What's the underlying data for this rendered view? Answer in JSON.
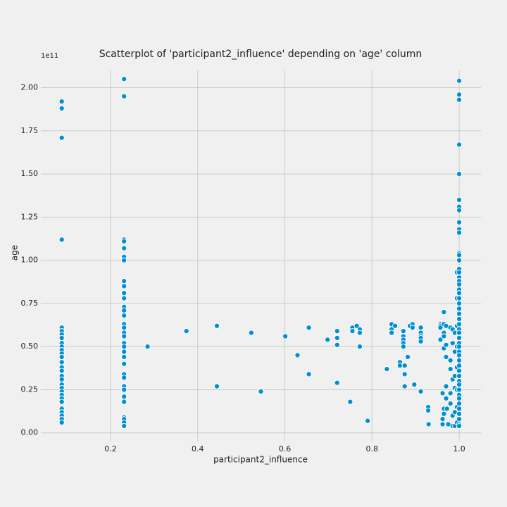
{
  "chart_data": {
    "type": "scatter",
    "title": "Scatterplot of 'participant2_influence' depending on 'age' column",
    "x_label": "participant2_influence",
    "y_label": "age",
    "y_offset_label": "1e11",
    "color": "#008fd5",
    "grid": true,
    "xlim": [
      0.04,
      1.05
    ],
    "ylim": [
      -0.05,
      2.1
    ],
    "xticks": [
      0.2,
      0.4,
      0.6,
      0.8,
      {
        "value": 1,
        "label": "1.0"
      }
    ],
    "yticks": [
      {
        "value": 0,
        "label": "0.00"
      },
      {
        "value": 0.25,
        "label": "0.25"
      },
      {
        "value": 0.5,
        "label": "0.50"
      },
      {
        "value": 0.75,
        "label": "0.75"
      },
      {
        "value": 1,
        "label": "1.00"
      },
      {
        "value": 1.25,
        "label": "1.25"
      },
      {
        "value": 1.5,
        "label": "1.50"
      },
      {
        "value": 1.75,
        "label": "1.75"
      },
      {
        "value": 2,
        "label": "2.00"
      }
    ],
    "x": [
      0.088,
      0.088,
      0.088,
      0.088,
      0.088,
      0.088,
      0.088,
      0.088,
      0.088,
      0.088,
      0.088,
      0.088,
      0.088,
      0.088,
      0.088,
      0.088,
      0.088,
      0.088,
      0.088,
      0.088,
      0.088,
      0.088,
      0.088,
      0.088,
      0.088,
      0.088,
      0.088,
      0.088,
      0.088,
      0.231,
      0.231,
      0.231,
      0.231,
      0.231,
      0.231,
      0.231,
      0.231,
      0.231,
      0.231,
      0.231,
      0.231,
      0.231,
      0.231,
      0.231,
      0.231,
      0.231,
      0.231,
      0.231,
      0.231,
      0.231,
      0.231,
      0.231,
      0.231,
      0.231,
      0.231,
      0.231,
      0.231,
      0.231,
      0.231,
      0.231,
      0.231,
      0.231,
      0.285,
      0.374,
      0.444,
      0.444,
      0.523,
      0.545,
      0.601,
      0.629,
      0.655,
      0.655,
      0.698,
      0.72,
      0.72,
      0.72,
      0.72,
      0.75,
      0.755,
      0.755,
      0.765,
      0.772,
      0.772,
      0.772,
      0.79,
      0.834,
      0.845,
      0.845,
      0.845,
      0.853,
      0.864,
      0.864,
      0.872,
      0.872,
      0.872,
      0.872,
      0.872,
      0.875,
      0.875,
      0.875,
      0.882,
      0.887,
      0.893,
      0.893,
      0.897,
      0.912,
      0.912,
      0.912,
      0.912,
      0.912,
      0.912,
      0.929,
      0.929,
      0.93,
      0.957,
      0.957,
      0.957,
      0.957,
      0.962,
      0.962,
      0.962,
      0.965,
      0.965,
      0.965,
      0.965,
      0.965,
      0.965,
      0.965,
      0.97,
      0.97,
      0.97,
      0.97,
      0.97,
      0.972,
      0.975,
      0.98,
      0.98,
      0.98,
      0.98,
      0.98,
      0.985,
      0.985,
      0.985,
      0.985,
      0.985,
      0.99,
      0.99,
      0.99,
      0.99,
      0.99,
      0.99,
      0.995,
      0.995,
      0.995,
      0.995,
      0.995,
      0.995,
      0.995,
      0.995,
      1,
      1,
      1,
      1,
      1,
      1,
      1,
      1,
      1,
      1,
      1,
      1,
      1,
      1,
      1,
      1,
      1,
      1,
      1,
      1,
      1,
      1,
      1,
      1,
      1,
      1,
      1,
      1,
      1,
      1,
      1,
      1,
      1,
      1,
      1,
      1,
      1,
      1,
      1,
      1,
      1,
      1,
      1,
      1,
      1,
      1,
      1,
      1,
      1
    ],
    "values": [
      1.92,
      1.88,
      1.71,
      1.12,
      0.61,
      0.59,
      0.57,
      0.55,
      0.52,
      0.5,
      0.48,
      0.46,
      0.44,
      0.41,
      0.38,
      0.36,
      0.33,
      0.31,
      0.28,
      0.26,
      0.24,
      0.22,
      0.2,
      0.18,
      0.14,
      0.12,
      0.1,
      0.08,
      0.06,
      2.05,
      1.95,
      1.12,
      1.11,
      1.07,
      1.02,
      1.0,
      0.88,
      0.85,
      0.81,
      0.78,
      0.73,
      0.71,
      0.68,
      0.63,
      0.61,
      0.58,
      0.56,
      0.52,
      0.5,
      0.47,
      0.44,
      0.4,
      0.34,
      0.32,
      0.27,
      0.25,
      0.21,
      0.18,
      0.09,
      0.08,
      0.06,
      0.04,
      0.5,
      0.59,
      0.62,
      0.27,
      0.58,
      0.24,
      0.56,
      0.45,
      0.61,
      0.34,
      0.54,
      0.59,
      0.55,
      0.51,
      0.29,
      0.18,
      0.61,
      0.59,
      0.62,
      0.6,
      0.58,
      0.5,
      0.07,
      0.37,
      0.63,
      0.6,
      0.58,
      0.62,
      0.41,
      0.39,
      0.59,
      0.56,
      0.54,
      0.52,
      0.5,
      0.39,
      0.34,
      0.27,
      0.44,
      0.62,
      0.63,
      0.61,
      0.28,
      0.61,
      0.58,
      0.56,
      0.55,
      0.53,
      0.24,
      0.15,
      0.13,
      0.05,
      0.63,
      0.62,
      0.61,
      0.54,
      0.23,
      0.08,
      0.05,
      0.7,
      0.63,
      0.58,
      0.56,
      0.49,
      0.14,
      0.11,
      0.62,
      0.51,
      0.44,
      0.27,
      0.2,
      0.14,
      0.05,
      0.61,
      0.42,
      0.37,
      0.23,
      0.17,
      0.6,
      0.52,
      0.31,
      0.1,
      0.04,
      0.58,
      0.47,
      0.33,
      0.26,
      0.12,
      0.04,
      0.93,
      0.78,
      0.62,
      0.5,
      0.38,
      0.25,
      0.15,
      0.06,
      2.04,
      1.96,
      1.93,
      1.67,
      1.5,
      1.35,
      1.31,
      1.29,
      1.22,
      1.18,
      1.16,
      1.04,
      1.03,
      1.0,
      0.95,
      0.93,
      0.9,
      0.88,
      0.86,
      0.83,
      0.81,
      0.78,
      0.75,
      0.72,
      0.69,
      0.66,
      0.63,
      0.6,
      0.58,
      0.55,
      0.52,
      0.5,
      0.47,
      0.45,
      0.42,
      0.39,
      0.36,
      0.33,
      0.3,
      0.28,
      0.25,
      0.22,
      0.2,
      0.17,
      0.14,
      0.11,
      0.08,
      0.05,
      0.04
    ]
  }
}
